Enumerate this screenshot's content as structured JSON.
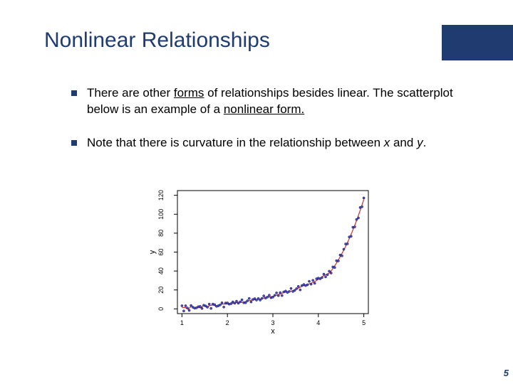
{
  "title": {
    "text": "Nonlinear Relationships",
    "color": "#1f3b6f",
    "fontsize": 30
  },
  "corner": {
    "color": "#1f3b6f"
  },
  "page_number": {
    "text": "5",
    "color": "#1f3b6f"
  },
  "bullets": {
    "marker_color": "#1f3b6f",
    "items": [
      {
        "pre": "There are other ",
        "underlined1": "forms",
        "mid1": " of relationships besides linear. The scatterplot below is an example of a ",
        "underlined2": "nonlinear form.",
        "post": ""
      },
      {
        "pre": "Note that there is curvature in the relationship between ",
        "italic1": "x",
        "mid1": " and ",
        "italic2": "y",
        "post": "."
      }
    ]
  },
  "chart": {
    "type": "scatter",
    "xlabel": "x",
    "ylabel": "y",
    "label_fontsize": 11,
    "tick_fontsize": 9,
    "xlim": [
      0.9,
      5.1
    ],
    "ylim": [
      -5,
      125
    ],
    "xticks": [
      1,
      2,
      3,
      4,
      5
    ],
    "yticks": [
      0,
      20,
      40,
      60,
      80,
      100,
      120
    ],
    "background_color": "#ffffff",
    "axis_color": "#000000",
    "axis_width": 1,
    "point_color": "#4a4ae0",
    "point_outline": "#000000",
    "point_radius": 1.6,
    "curve_color": "#d03030",
    "curve_width": 1.2,
    "points": [
      [
        1.0,
        1.2
      ],
      [
        1.04,
        -0.8
      ],
      [
        1.08,
        2.5
      ],
      [
        1.12,
        -1.0
      ],
      [
        1.16,
        0.4
      ],
      [
        1.2,
        3.1
      ],
      [
        1.24,
        -0.5
      ],
      [
        1.28,
        1.8
      ],
      [
        1.32,
        0.2
      ],
      [
        1.36,
        2.9
      ],
      [
        1.4,
        0.9
      ],
      [
        1.44,
        2.2
      ],
      [
        1.48,
        3.5
      ],
      [
        1.52,
        1.1
      ],
      [
        1.56,
        2.7
      ],
      [
        1.6,
        3.9
      ],
      [
        1.64,
        2.0
      ],
      [
        1.68,
        4.3
      ],
      [
        1.72,
        2.5
      ],
      [
        1.76,
        3.1
      ],
      [
        1.8,
        4.8
      ],
      [
        1.84,
        3.4
      ],
      [
        1.88,
        5.1
      ],
      [
        1.92,
        4.0
      ],
      [
        1.96,
        5.6
      ],
      [
        2.0,
        4.5
      ],
      [
        2.04,
        6.0
      ],
      [
        2.08,
        5.2
      ],
      [
        2.12,
        5.8
      ],
      [
        2.16,
        6.7
      ],
      [
        2.2,
        5.9
      ],
      [
        2.24,
        7.3
      ],
      [
        2.28,
        6.5
      ],
      [
        2.32,
        7.9
      ],
      [
        2.36,
        7.0
      ],
      [
        2.4,
        8.4
      ],
      [
        2.44,
        7.8
      ],
      [
        2.48,
        9.0
      ],
      [
        2.52,
        8.5
      ],
      [
        2.56,
        9.5
      ],
      [
        2.6,
        9.0
      ],
      [
        2.64,
        10.1
      ],
      [
        2.68,
        9.8
      ],
      [
        2.72,
        11.0
      ],
      [
        2.76,
        10.5
      ],
      [
        2.8,
        11.6
      ],
      [
        2.84,
        12.4
      ],
      [
        2.88,
        11.9
      ],
      [
        2.92,
        13.1
      ],
      [
        2.96,
        12.7
      ],
      [
        3.0,
        14.0
      ],
      [
        3.04,
        13.5
      ],
      [
        3.08,
        15.0
      ],
      [
        3.12,
        14.6
      ],
      [
        3.16,
        16.0
      ],
      [
        3.2,
        15.5
      ],
      [
        3.24,
        17.2
      ],
      [
        3.28,
        16.8
      ],
      [
        3.32,
        18.5
      ],
      [
        3.36,
        17.9
      ],
      [
        3.4,
        19.8
      ],
      [
        3.44,
        19.2
      ],
      [
        3.48,
        21.0
      ],
      [
        3.52,
        20.5
      ],
      [
        3.56,
        22.5
      ],
      [
        3.6,
        22.0
      ],
      [
        3.64,
        24.0
      ],
      [
        3.68,
        23.5
      ],
      [
        3.72,
        25.6
      ],
      [
        3.76,
        25.0
      ],
      [
        3.8,
        27.3
      ],
      [
        3.84,
        26.8
      ],
      [
        3.88,
        29.1
      ],
      [
        3.92,
        28.6
      ],
      [
        3.96,
        31.0
      ],
      [
        4.0,
        30.5
      ],
      [
        4.04,
        33.0
      ],
      [
        4.08,
        32.5
      ],
      [
        4.12,
        35.2
      ],
      [
        4.16,
        34.7
      ],
      [
        4.2,
        37.5
      ],
      [
        4.24,
        37.0
      ],
      [
        4.28,
        40.0
      ],
      [
        4.32,
        42.7
      ],
      [
        4.36,
        45.5
      ],
      [
        4.4,
        48.5
      ],
      [
        4.44,
        51.7
      ],
      [
        4.48,
        55.0
      ],
      [
        4.52,
        58.5
      ],
      [
        4.56,
        62.2
      ],
      [
        4.6,
        66.0
      ],
      [
        4.64,
        70.0
      ],
      [
        4.68,
        74.3
      ],
      [
        4.72,
        78.7
      ],
      [
        4.76,
        83.3
      ],
      [
        4.8,
        88.1
      ],
      [
        4.84,
        93.2
      ],
      [
        4.88,
        98.5
      ],
      [
        4.92,
        104.0
      ],
      [
        4.96,
        109.7
      ],
      [
        5.0,
        115.7
      ]
    ],
    "jitter": [
      2.1,
      -1.4,
      0.8,
      1.9,
      -2.0,
      0.5,
      2.3,
      -1.1,
      0.9,
      -0.6,
      1.7,
      -1.8,
      0.4,
      2.0,
      -0.9,
      1.2,
      -1.5,
      0.7,
      1.9,
      -0.4,
      -1.6,
      0.8,
      1.3,
      -2.1,
      0.6,
      1.8,
      -1.0,
      0.3,
      1.5,
      -0.7,
      2.2,
      -1.3,
      0.9,
      1.6,
      -0.5,
      -1.9,
      0.7,
      2.0,
      -1.2,
      0.4,
      1.8,
      -0.8,
      1.1,
      -1.7,
      0.6,
      2.1,
      -1.0,
      0.5,
      1.4,
      -0.9,
      -1.6,
      0.8,
      1.9,
      -0.6,
      1.2,
      -1.4,
      0.7,
      2.0,
      -1.1,
      0.5,
      1.7,
      -0.8,
      -1.5,
      0.9,
      1.3,
      -1.9,
      0.6,
      2.2,
      -1.0,
      0.4,
      1.8,
      -0.7,
      1.1,
      -1.6,
      0.8,
      2.0,
      -1.2,
      0.5,
      1.5,
      -0.9,
      -1.4,
      2.8,
      -2.2,
      1.6,
      -1.8,
      2.4,
      -1.0,
      1.9,
      -2.5,
      0.8,
      2.6,
      -1.3,
      1.7,
      -2.0,
      2.9,
      -1.5,
      1.2,
      -2.4,
      3.1,
      -1.8,
      1.5
    ],
    "curve_samples": 60
  }
}
